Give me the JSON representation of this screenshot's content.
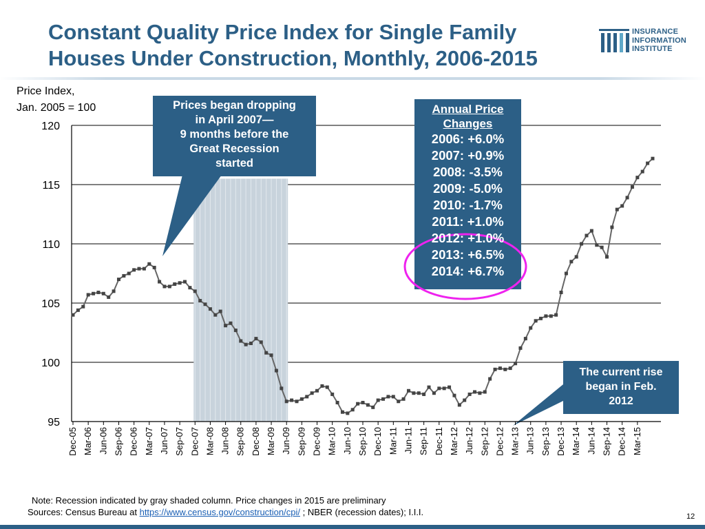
{
  "title_line1": "Constant Quality Price Index for Single Family",
  "title_line2": "Houses Under Construction, Monthly, 2006-2015",
  "logo": {
    "line1": "INSURANCE",
    "line2": "INFORMATION",
    "line3": "INSTITUTE"
  },
  "colors": {
    "title": "#2c5f86",
    "callout": "#2c5f86",
    "line": "#666666",
    "recession": "#c8d3dc",
    "highlight": "#ee22ee"
  },
  "chart_data": {
    "type": "line",
    "title": "Constant Quality Price Index for Single Family Houses Under Construction, Monthly, 2006-2015",
    "ylabel_line1": "Price Index,",
    "ylabel_line2": "Jan. 2005 = 100",
    "ylim": [
      95,
      120
    ],
    "y_ticks": [
      95,
      100,
      105,
      110,
      115,
      120
    ],
    "y_tick_labels": [
      "95",
      "100",
      "105",
      "110",
      "115",
      "120"
    ],
    "grid": true,
    "x_start": "Dec-05",
    "x_ticks": [
      "Dec-05",
      "Mar-06",
      "Jun-06",
      "Sep-06",
      "Dec-06",
      "Mar-07",
      "Jun-07",
      "Sep-07",
      "Dec-07",
      "Mar-08",
      "Jun-08",
      "Sep-08",
      "Dec-08",
      "Mar-09",
      "Jun-09",
      "Sep-09",
      "Dec-09",
      "Mar-10",
      "Jun-10",
      "Sep-10",
      "Dec-10",
      "Mar-11",
      "Jun-11",
      "Sep-11",
      "Dec-11",
      "Mar-12",
      "Jun-12",
      "Sep-12",
      "Dec-12",
      "Mar-13",
      "Jun-13",
      "Sep-13",
      "Dec-13",
      "Mar-14",
      "Jun-14",
      "Sep-14",
      "Dec-14",
      "Mar-15"
    ],
    "recession_months": [
      24,
      42
    ],
    "series": [
      {
        "name": "Price Index",
        "values": [
          104.0,
          104.4,
          104.7,
          105.7,
          105.8,
          105.9,
          105.8,
          105.5,
          106.0,
          107.0,
          107.3,
          107.5,
          107.8,
          107.9,
          107.9,
          108.3,
          108.0,
          106.8,
          106.4,
          106.4,
          106.6,
          106.7,
          106.8,
          106.3,
          106.0,
          105.2,
          104.9,
          104.5,
          104.0,
          104.3,
          103.1,
          103.3,
          102.7,
          101.8,
          101.5,
          101.6,
          102.0,
          101.7,
          100.8,
          100.6,
          99.3,
          97.8,
          96.7,
          96.8,
          96.7,
          96.9,
          97.1,
          97.4,
          97.6,
          98.0,
          97.9,
          97.3,
          96.6,
          95.8,
          95.7,
          96.0,
          96.5,
          96.6,
          96.4,
          96.2,
          96.8,
          96.9,
          97.1,
          97.1,
          96.7,
          96.9,
          97.6,
          97.4,
          97.4,
          97.3,
          97.9,
          97.4,
          97.8,
          97.8,
          97.9,
          97.2,
          96.4,
          96.8,
          97.3,
          97.5,
          97.4,
          97.5,
          98.6,
          99.4,
          99.5,
          99.4,
          99.5,
          99.9,
          101.2,
          102.0,
          102.9,
          103.5,
          103.7,
          103.9,
          103.9,
          104.0,
          105.9,
          107.5,
          108.5,
          108.9,
          110.0,
          110.7,
          111.1,
          109.9,
          109.7,
          108.9,
          111.4,
          112.9,
          113.2,
          113.9,
          114.8,
          115.6,
          116.1,
          116.8,
          117.2
        ]
      }
    ],
    "annotations": {
      "recession_callout": [
        "Prices began dropping",
        "in April 2007—",
        "9 months before the",
        "Great Recession",
        "started"
      ],
      "annual_changes_header": [
        "Annual Price",
        "Changes"
      ],
      "annual_changes": [
        "2006: +6.0%",
        "2007: +0.9%",
        "2008: -3.5%",
        "2009: -5.0%",
        "2010: -1.7%",
        "2011: +1.0%",
        "2012: +1.0%",
        "2013: +6.5%",
        "2014: +6.7%"
      ],
      "current_rise": [
        "The current rise",
        "began in Feb.",
        "2012"
      ]
    }
  },
  "footer": {
    "note": "Note: Recession indicated by gray shaded column. Price changes in 2015 are preliminary",
    "sources_prefix": "Sources: Census Bureau at ",
    "sources_link": "https://www.census.gov/construction/cpi/",
    "sources_suffix": " ; NBER (recession dates); I.I.I."
  },
  "page_number": "12"
}
